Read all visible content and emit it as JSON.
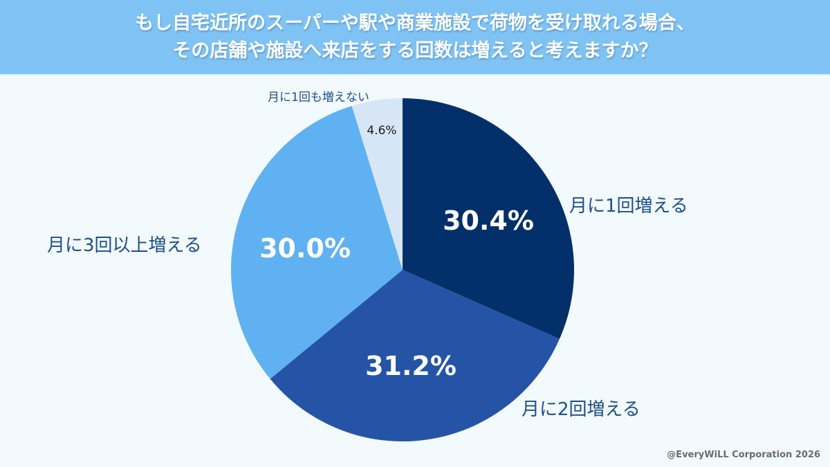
{
  "header": {
    "title_line1": "もし自宅近所のスーパーや駅や商業施設で荷物を受け取れる場合、",
    "title_line2": "その店舗や施設へ来店をする回数は増えると考えますか？"
  },
  "footer": {
    "credit": "@EveryWiLL Corporation 2026"
  },
  "colors": {
    "header_bg": "#7fc3f4",
    "background": "#f3fafe",
    "slice_1": "#03306a",
    "slice_2": "#2554a6",
    "slice_3": "#5fb1f2",
    "slice_4": "#d7e6f6",
    "label_text": "#1d4f8a"
  },
  "chart_data": {
    "type": "pie",
    "title": "もし自宅近所のスーパーや駅や商業施設で荷物を受け取れる場合、その店舗や施設へ来店をする回数は増えると考えますか？",
    "start_angle": "12 o'clock, clockwise",
    "categories": [
      "月に1回増える",
      "月に2回増える",
      "月に3回以上増える",
      "月に1回も増えない"
    ],
    "values": [
      30.4,
      31.2,
      30.0,
      4.6
    ],
    "value_labels": [
      "30.4%",
      "31.2%",
      "30.0%",
      "4.6%"
    ],
    "colors": [
      "#03306a",
      "#2554a6",
      "#5fb1f2",
      "#d7e6f6"
    ],
    "legend": "none (direct labels)"
  }
}
